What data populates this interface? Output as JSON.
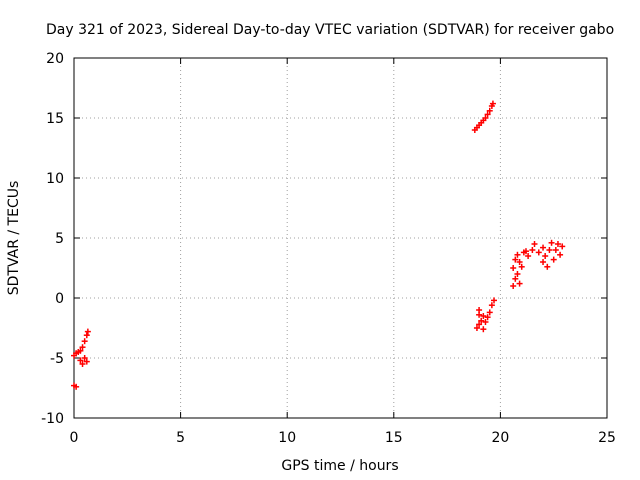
{
  "chart_data": {
    "type": "scatter",
    "title": "Day 321 of 2023, Sidereal Day-to-day VTEC variation (SDTVAR) for receiver gabo",
    "xlabel": "GPS time / hours",
    "ylabel": "SDTVAR / TECUs",
    "xlim": [
      0,
      25
    ],
    "ylim": [
      -10,
      20
    ],
    "xticks": [
      0,
      5,
      10,
      15,
      20,
      25
    ],
    "yticks": [
      -10,
      -5,
      0,
      5,
      10,
      15,
      20
    ],
    "grid": true,
    "series": [
      {
        "color": "#ff0000",
        "points": [
          [
            0.0,
            -7.3
          ],
          [
            0.1,
            -7.4
          ],
          [
            0.0,
            -4.8
          ],
          [
            0.1,
            -4.6
          ],
          [
            0.2,
            -4.5
          ],
          [
            0.3,
            -4.4
          ],
          [
            0.4,
            -4.1
          ],
          [
            0.5,
            -3.6
          ],
          [
            0.6,
            -3.1
          ],
          [
            0.65,
            -2.8
          ],
          [
            0.3,
            -5.2
          ],
          [
            0.4,
            -5.5
          ],
          [
            0.5,
            -5.0
          ],
          [
            0.6,
            -5.3
          ],
          [
            18.8,
            14.0
          ],
          [
            18.9,
            14.2
          ],
          [
            19.0,
            14.4
          ],
          [
            19.1,
            14.6
          ],
          [
            19.2,
            14.8
          ],
          [
            19.3,
            15.0
          ],
          [
            19.4,
            15.3
          ],
          [
            19.5,
            15.6
          ],
          [
            19.6,
            16.0
          ],
          [
            19.65,
            16.2
          ],
          [
            18.9,
            -2.5
          ],
          [
            19.0,
            -2.2
          ],
          [
            19.0,
            -1.4
          ],
          [
            19.1,
            -1.9
          ],
          [
            19.2,
            -1.5
          ],
          [
            19.3,
            -2.0
          ],
          [
            19.4,
            -1.6
          ],
          [
            19.5,
            -1.2
          ],
          [
            19.6,
            -0.6
          ],
          [
            19.7,
            -0.2
          ],
          [
            19.2,
            -2.6
          ],
          [
            19.0,
            -1.0
          ],
          [
            20.6,
            1.0
          ],
          [
            20.7,
            1.6
          ],
          [
            20.6,
            2.5
          ],
          [
            20.7,
            3.2
          ],
          [
            20.8,
            3.6
          ],
          [
            20.9,
            3.0
          ],
          [
            21.0,
            2.6
          ],
          [
            20.8,
            2.0
          ],
          [
            21.1,
            3.8
          ],
          [
            21.3,
            3.5
          ],
          [
            21.5,
            4.0
          ],
          [
            21.6,
            4.5
          ],
          [
            21.8,
            3.8
          ],
          [
            22.0,
            4.2
          ],
          [
            22.1,
            3.5
          ],
          [
            22.3,
            4.0
          ],
          [
            22.4,
            4.6
          ],
          [
            22.5,
            3.2
          ],
          [
            22.6,
            4.0
          ],
          [
            22.7,
            4.5
          ],
          [
            22.8,
            3.6
          ],
          [
            22.9,
            4.3
          ],
          [
            22.2,
            2.6
          ],
          [
            22.0,
            3.0
          ],
          [
            21.2,
            3.9
          ],
          [
            20.9,
            1.2
          ]
        ]
      }
    ]
  }
}
